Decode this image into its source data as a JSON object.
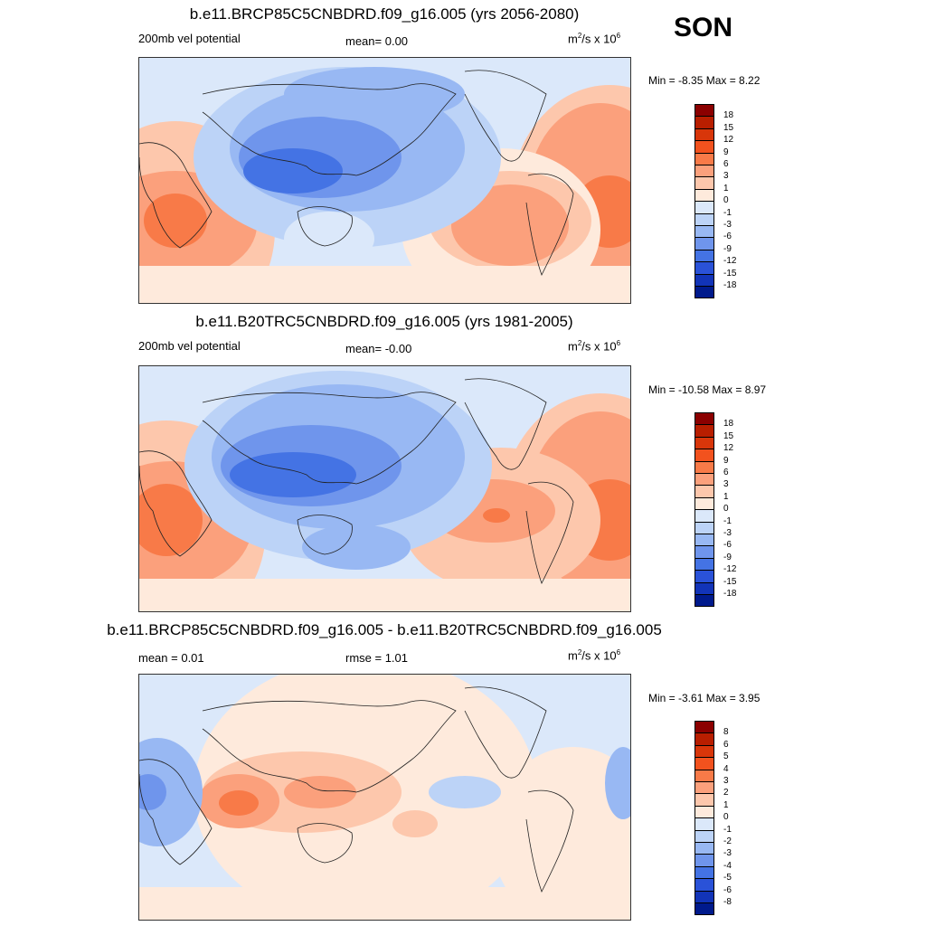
{
  "season": "SON",
  "panels": [
    {
      "id": "future",
      "title": "b.e11.BRCP85C5CNBDRD.f09_g16.005 (yrs 2056-2080)",
      "left_label": "200mb vel potential",
      "center_label": "mean=   0.00",
      "units_base": "m",
      "units_exp": "2",
      "units_mid": "/s x 10",
      "units_pow": "6",
      "minmax": "Min =  -8.35 Max =   8.22",
      "colorbar_labels": [
        "18",
        "15",
        "12",
        "9",
        "6",
        "3",
        "1",
        "0",
        "-1",
        "-3",
        "-6",
        "-9",
        "-12",
        "-15",
        "-18"
      ]
    },
    {
      "id": "historical",
      "title": "b.e11.B20TRC5CNBDRD.f09_g16.005 (yrs 1981-2005)",
      "left_label": "200mb vel potential",
      "center_label": "mean=  -0.00",
      "units_base": "m",
      "units_exp": "2",
      "units_mid": "/s x 10",
      "units_pow": "6",
      "minmax": "Min = -10.58 Max =   8.97",
      "colorbar_labels": [
        "18",
        "15",
        "12",
        "9",
        "6",
        "3",
        "1",
        "0",
        "-1",
        "-3",
        "-6",
        "-9",
        "-12",
        "-15",
        "-18"
      ]
    },
    {
      "id": "difference",
      "title": "b.e11.BRCP85C5CNBDRD.f09_g16.005 - b.e11.B20TRC5CNBDRD.f09_g16.005",
      "left_label": "mean =   0.01",
      "center_label": "rmse =   1.01",
      "units_base": "m",
      "units_exp": "2",
      "units_mid": "/s x 10",
      "units_pow": "6",
      "minmax": "Min =  -3.61 Max =   3.95",
      "colorbar_labels": [
        "8",
        "6",
        "5",
        "4",
        "3",
        "2",
        "1",
        "0",
        "-1",
        "-2",
        "-3",
        "-4",
        "-5",
        "-6",
        "-8"
      ]
    }
  ],
  "colors": {
    "scale": [
      "#8b0000",
      "#b81e00",
      "#d8360a",
      "#f2521e",
      "#f87a48",
      "#fba07c",
      "#fdc7ac",
      "#feeadc",
      "#dbe8fa",
      "#bcd3f7",
      "#98b8f3",
      "#6f95ec",
      "#4473e4",
      "#2a52d8",
      "#1234b8",
      "#001a8c"
    ]
  },
  "chart_data": [
    {
      "type": "heatmap",
      "title": "b.e11.BRCP85C5CNBDRD.f09_g16.005 (yrs 2056-2080)",
      "variable": "200mb vel potential",
      "units": "m^2/s x 10^6",
      "mean": 0.0,
      "min": -8.35,
      "max": 8.22,
      "levels": [
        -18,
        -15,
        -12,
        -9,
        -6,
        -3,
        -1,
        0,
        1,
        3,
        6,
        9,
        12,
        15,
        18
      ]
    },
    {
      "type": "heatmap",
      "title": "b.e11.B20TRC5CNBDRD.f09_g16.005 (yrs 1981-2005)",
      "variable": "200mb vel potential",
      "units": "m^2/s x 10^6",
      "mean": -0.0,
      "min": -10.58,
      "max": 8.97,
      "levels": [
        -18,
        -15,
        -12,
        -9,
        -6,
        -3,
        -1,
        0,
        1,
        3,
        6,
        9,
        12,
        15,
        18
      ]
    },
    {
      "type": "heatmap",
      "title": "b.e11.BRCP85C5CNBDRD.f09_g16.005 - b.e11.B20TRC5CNBDRD.f09_g16.005",
      "units": "m^2/s x 10^6",
      "mean": 0.01,
      "rmse": 1.01,
      "min": -3.61,
      "max": 3.95,
      "levels": [
        -8,
        -6,
        -5,
        -4,
        -3,
        -2,
        -1,
        0,
        1,
        2,
        3,
        4,
        5,
        6,
        8
      ]
    }
  ]
}
